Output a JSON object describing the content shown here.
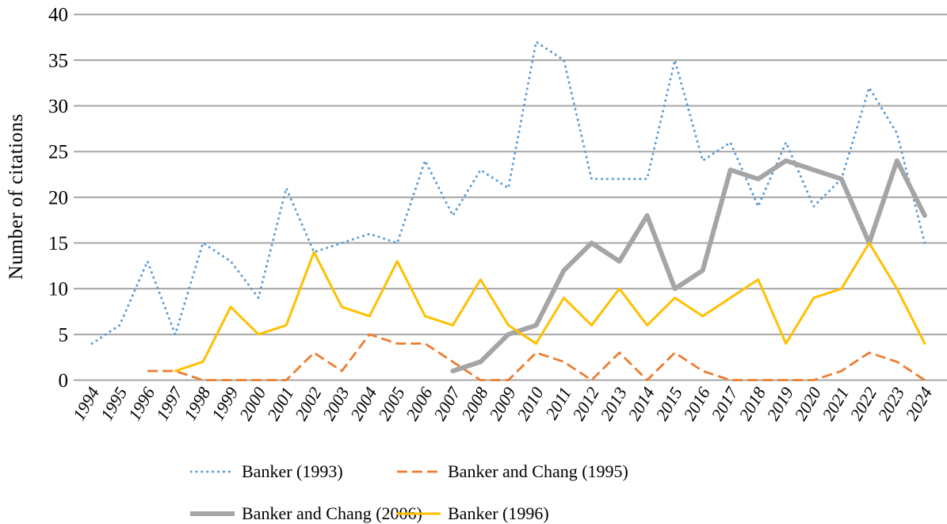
{
  "chart_data": {
    "type": "line",
    "title": "",
    "xlabel": "",
    "ylabel": "Number of citations",
    "ylim": [
      0,
      40
    ],
    "y_tick_step": 5,
    "y_ticks": [
      "0",
      "5",
      "10",
      "15",
      "20",
      "25",
      "30",
      "35",
      "40"
    ],
    "grid": true,
    "legend_position": "bottom",
    "gridline_color": "#a6a6a6",
    "text_color": "#000000",
    "categories": [
      "1994",
      "1995",
      "1996",
      "1997",
      "1998",
      "1999",
      "2000",
      "2001",
      "2002",
      "2003",
      "2004",
      "2005",
      "2006",
      "2007",
      "2008",
      "2009",
      "2010",
      "2011",
      "2012",
      "2013",
      "2014",
      "2015",
      "2016",
      "2017",
      "2018",
      "2019",
      "2020",
      "2021",
      "2022",
      "2023",
      "2024"
    ],
    "series": [
      {
        "name": "Banker (1993)",
        "color": "#5B9BD5",
        "style": "dotted",
        "values": [
          4,
          6,
          13,
          5,
          15,
          13,
          9,
          21,
          14,
          15,
          16,
          15,
          24,
          18,
          23,
          21,
          37,
          35,
          22,
          22,
          22,
          35,
          24,
          26,
          19,
          26,
          19,
          22,
          32,
          27,
          15
        ]
      },
      {
        "name": "Banker and Chang (1995)",
        "color": "#ED7D31",
        "style": "dashed",
        "values": [
          null,
          null,
          1,
          1,
          0,
          0,
          0,
          0,
          3,
          1,
          5,
          4,
          4,
          2,
          0,
          0,
          3,
          2,
          0,
          3,
          0,
          3,
          1,
          0,
          0,
          0,
          0,
          1,
          3,
          2,
          0
        ]
      },
      {
        "name": "Banker and Chang (2006)",
        "color": "#A5A5A5",
        "style": "solid-thick",
        "values": [
          null,
          null,
          null,
          null,
          null,
          null,
          null,
          null,
          null,
          null,
          null,
          null,
          null,
          1,
          2,
          5,
          6,
          12,
          15,
          13,
          18,
          10,
          12,
          23,
          22,
          24,
          23,
          22,
          15,
          24,
          18
        ]
      },
      {
        "name": "Banker (1996)",
        "color": "#FFC000",
        "style": "solid",
        "values": [
          null,
          null,
          null,
          1,
          2,
          8,
          5,
          6,
          14,
          8,
          7,
          13,
          7,
          6,
          11,
          6,
          4,
          9,
          6,
          10,
          6,
          9,
          7,
          9,
          11,
          4,
          9,
          10,
          15,
          10,
          4
        ]
      }
    ]
  }
}
